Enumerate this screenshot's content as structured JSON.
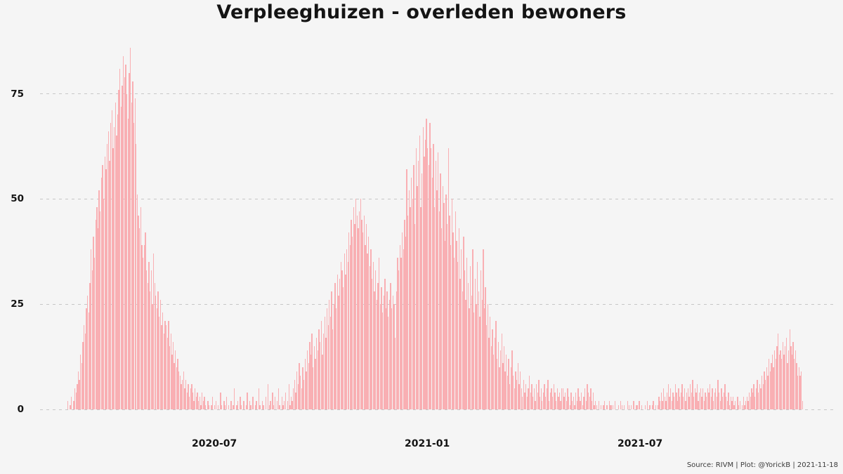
{
  "source_note": "Source: RIVM | Plot: @YorickB |  2021-11-18",
  "colors": {
    "background": "#f5f5f5",
    "bar": "#f9afb3",
    "grid": "#c7c7c7",
    "text": "#141414",
    "source_text": "#3a3a3a"
  },
  "chart_data": {
    "type": "bar",
    "title": "Verpleeghuizen - overleden bewoners",
    "xlabel": "",
    "ylabel": "",
    "ylim": [
      0,
      87
    ],
    "yticks": [
      0,
      25,
      50,
      75
    ],
    "x_tick_labels": [
      "2020-07",
      "2021-01",
      "2021-07"
    ],
    "x_tick_day_index": [
      127,
      311,
      495
    ],
    "grid": "horizontal-dashed",
    "legend": "none",
    "values": [
      2,
      0,
      1,
      3,
      0,
      2,
      5,
      4,
      6,
      9,
      7,
      13,
      11,
      16,
      20,
      18,
      24,
      27,
      23,
      30,
      38,
      33,
      41,
      36,
      45,
      48,
      43,
      52,
      47,
      55,
      58,
      50,
      60,
      57,
      63,
      66,
      59,
      68,
      71,
      62,
      67,
      73,
      65,
      70,
      76,
      81,
      72,
      77,
      84,
      79,
      82,
      75,
      69,
      80,
      86,
      73,
      78,
      68,
      74,
      63,
      51,
      46,
      43,
      48,
      39,
      36,
      39,
      42,
      33,
      30,
      35,
      28,
      33,
      25,
      37,
      30,
      27,
      24,
      28,
      22,
      26,
      20,
      23,
      18,
      21,
      20,
      17,
      21,
      15,
      18,
      13,
      16,
      11,
      14,
      10,
      12,
      9,
      8,
      6,
      7,
      9,
      5,
      7,
      4,
      6,
      3,
      5,
      6,
      4,
      2,
      5,
      3,
      4,
      2,
      3,
      1,
      4,
      2,
      3,
      1,
      0,
      2,
      1,
      0,
      1,
      3,
      0,
      1,
      2,
      0,
      1,
      0,
      4,
      1,
      0,
      2,
      1,
      3,
      0,
      1,
      0,
      2,
      0,
      1,
      5,
      0,
      1,
      2,
      0,
      3,
      1,
      0,
      2,
      0,
      1,
      4,
      0,
      2,
      1,
      0,
      3,
      0,
      1,
      2,
      0,
      5,
      1,
      0,
      2,
      1,
      0,
      3,
      0,
      6,
      1,
      2,
      0,
      4,
      1,
      3,
      0,
      2,
      5,
      1,
      0,
      3,
      1,
      2,
      4,
      0,
      2,
      6,
      1,
      3,
      2,
      5,
      7,
      4,
      9,
      6,
      11,
      8,
      5,
      10,
      7,
      12,
      9,
      14,
      11,
      16,
      13,
      18,
      10,
      15,
      12,
      17,
      14,
      19,
      16,
      21,
      13,
      18,
      22,
      17,
      24,
      20,
      26,
      22,
      28,
      19,
      25,
      30,
      24,
      32,
      27,
      31,
      35,
      33,
      29,
      37,
      32,
      38,
      35,
      42,
      39,
      45,
      41,
      48,
      44,
      50,
      46,
      43,
      47,
      50,
      45,
      42,
      46,
      39,
      44,
      37,
      41,
      34,
      38,
      31,
      35,
      28,
      33,
      26,
      30,
      36,
      25,
      29,
      23,
      27,
      31,
      24,
      28,
      22,
      26,
      30,
      24,
      27,
      25,
      17,
      28,
      36,
      33,
      39,
      36,
      42,
      38,
      45,
      41,
      57,
      46,
      52,
      48,
      55,
      50,
      58,
      44,
      62,
      53,
      59,
      65,
      48,
      56,
      67,
      60,
      64,
      69,
      62,
      58,
      68,
      62,
      55,
      63,
      48,
      59,
      52,
      61,
      47,
      56,
      43,
      53,
      49,
      40,
      51,
      44,
      62,
      46,
      39,
      50,
      42,
      36,
      47,
      40,
      35,
      43,
      31,
      38,
      28,
      41,
      33,
      26,
      36,
      30,
      24,
      34,
      27,
      38,
      23,
      31,
      25,
      35,
      28,
      22,
      33,
      26,
      38,
      24,
      29,
      20,
      25,
      17,
      22,
      15,
      19,
      13,
      17,
      21,
      12,
      16,
      10,
      14,
      18,
      11,
      15,
      9,
      13,
      8,
      12,
      6,
      10,
      14,
      8,
      5,
      9,
      7,
      11,
      6,
      9,
      5,
      3,
      7,
      4,
      6,
      3,
      5,
      8,
      4,
      6,
      3,
      5,
      2,
      6,
      4,
      7,
      3,
      5,
      2,
      4,
      6,
      3,
      5,
      7,
      2,
      4,
      5,
      3,
      6,
      4,
      2,
      5,
      3,
      4,
      2,
      5,
      5,
      3,
      4,
      2,
      5,
      3,
      1,
      4,
      2,
      3,
      1,
      4,
      2,
      5,
      3,
      2,
      4,
      1,
      3,
      5,
      2,
      6,
      4,
      3,
      5,
      2,
      4,
      1,
      2,
      1,
      0,
      2,
      0,
      1,
      0,
      1,
      2,
      0,
      1,
      0,
      2,
      1,
      1,
      1,
      0,
      2,
      0,
      0,
      1,
      0,
      2,
      1,
      0,
      1,
      0,
      0,
      2,
      1,
      0,
      1,
      0,
      2,
      0,
      1,
      1,
      0,
      2,
      0,
      1,
      0,
      0,
      1,
      0,
      2,
      0,
      1,
      0,
      1,
      2,
      0,
      1,
      0,
      1,
      3,
      2,
      4,
      2,
      5,
      3,
      2,
      4,
      6,
      3,
      5,
      2,
      4,
      3,
      6,
      4,
      2,
      5,
      3,
      4,
      6,
      3,
      5,
      2,
      4,
      5,
      3,
      6,
      4,
      7,
      3,
      5,
      4,
      6,
      2,
      4,
      5,
      3,
      5,
      2,
      4,
      3,
      5,
      4,
      6,
      3,
      5,
      2,
      4,
      5,
      3,
      7,
      4,
      2,
      5,
      3,
      4,
      6,
      3,
      2,
      4,
      1,
      3,
      2,
      3,
      1,
      2,
      0,
      3,
      1,
      2,
      0,
      1,
      3,
      1,
      2,
      3,
      2,
      4,
      3,
      5,
      4,
      6,
      3,
      5,
      7,
      4,
      6,
      5,
      8,
      6,
      9,
      7,
      10,
      8,
      12,
      9,
      11,
      13,
      10,
      14,
      12,
      15,
      18,
      13,
      14,
      12,
      16,
      13,
      15,
      17,
      11,
      14,
      19,
      15,
      13,
      16,
      12,
      14,
      11,
      8,
      10,
      8,
      9,
      2
    ]
  }
}
